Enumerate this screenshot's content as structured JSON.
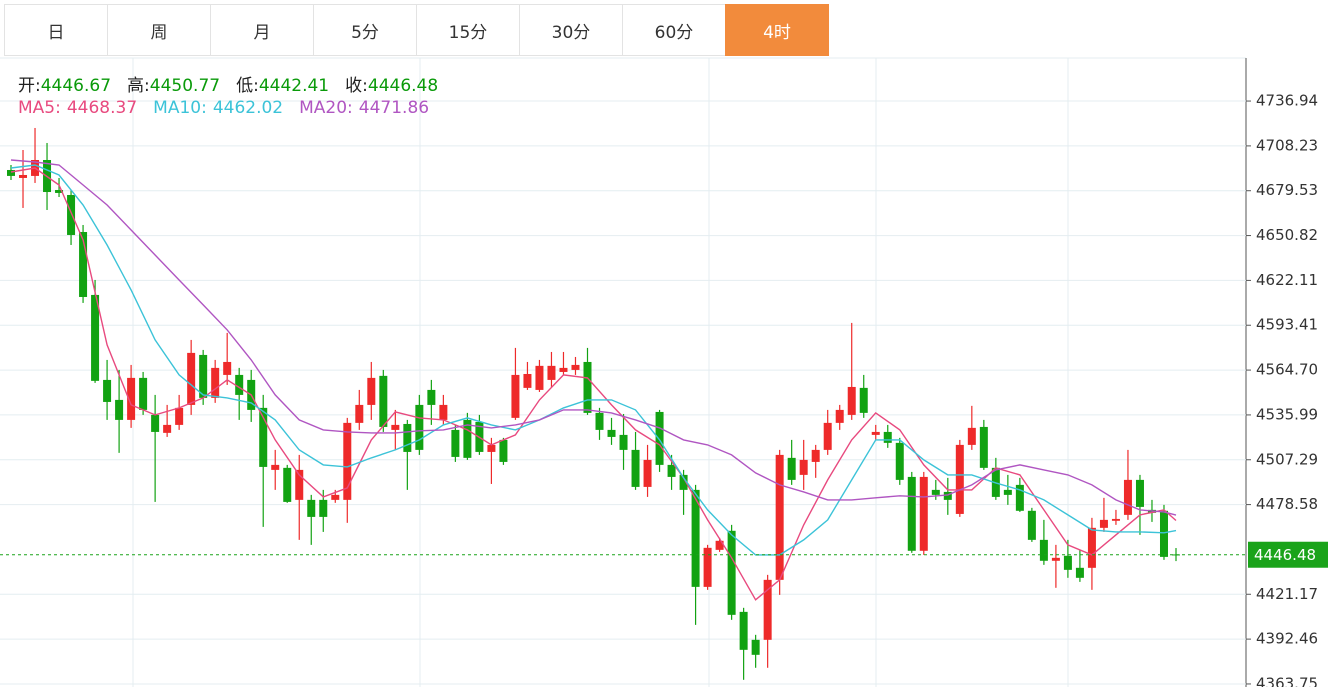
{
  "tabs": [
    "日",
    "周",
    "月",
    "5分",
    "15分",
    "30分",
    "60分",
    "4时"
  ],
  "active_tab": 7,
  "chart_data": {
    "type": "candlestick",
    "header": [
      {
        "label": "开:",
        "value": 4446.67
      },
      {
        "label": "高:",
        "value": 4450.77
      },
      {
        "label": "低:",
        "value": 4442.41
      },
      {
        "label": "收:",
        "value": 4446.48
      }
    ],
    "up_color": "#ee2a2a",
    "down_color": "#12a212",
    "ylim": [
      4361.8,
      4764.5
    ],
    "yticks": [
      4363.75,
      4392.46,
      4421.17,
      4478.58,
      4507.29,
      4535.99,
      {
        "value": 4564.7,
        "label": "4564.70"
      },
      4593.41,
      4622.11,
      4650.82,
      4679.53,
      4708.23,
      4736.94
    ],
    "grid": true,
    "last_price": 4446.48,
    "last_price_color": "#1aa31a",
    "open": [
      4692.8,
      4687.7,
      4689.0,
      4699.2,
      4680.0,
      4676.8,
      4653.1,
      4612.8,
      4558.4,
      4545.6,
      4532.8,
      4559.7,
      4536.0,
      4524.5,
      4529.6,
      4542.4,
      4574.4,
      4546.9,
      4561.6,
      4561.6,
      4558.4,
      4540.5,
      4500.8,
      4502.1,
      4481.6,
      4481.6,
      4481.6,
      4481.6,
      4481.6,
      4530.9,
      4542.4,
      4561.0,
      4526.4,
      4530.2,
      4542.4,
      4552.0,
      4532.8,
      4526.4,
      4532.8,
      4531.5,
      4512.3,
      4520.0,
      4534.1,
      4553.3,
      4552.0,
      4558.4,
      4563.5,
      4564.8,
      4569.9,
      4537.3,
      4526.4,
      4523.2,
      4513.6,
      4489.9,
      4537.9,
      4504.0,
      4497.6,
      4488.0,
      4425.9,
      4449.6,
      4461.8,
      4409.9,
      4392.0,
      4392.0,
      4430.4,
      4508.5,
      4497.6,
      4505.9,
      4513.6,
      4530.9,
      4536.0,
      4553.3,
      4523.2,
      4525.1,
      4518.1,
      4496.3,
      4449.0,
      4488.0,
      4486.7,
      4472.6,
      4516.8,
      4528.3,
      4502.1,
      4488.0,
      4491.2,
      4474.6,
      4456.0,
      4442.6,
      4445.8,
      4438.1,
      4438.1,
      4463.7,
      4468.2,
      4472.0,
      4494.4,
      4475.2,
      4474.6,
      4446.67
    ],
    "close": [
      4689.0,
      4689.6,
      4699.2,
      4678.7,
      4678.1,
      4651.2,
      4611.5,
      4557.8,
      4544.3,
      4532.8,
      4559.7,
      4539.2,
      4525.1,
      4529.6,
      4540.5,
      4575.7,
      4546.9,
      4566.1,
      4569.9,
      4548.8,
      4539.2,
      4502.7,
      4504.0,
      4480.3,
      4500.8,
      4470.7,
      4470.7,
      4484.8,
      4530.9,
      4542.4,
      4559.7,
      4528.3,
      4529.6,
      4512.3,
      4513.6,
      4542.4,
      4542.4,
      4509.1,
      4508.5,
      4512.3,
      4516.8,
      4505.9,
      4561.6,
      4562.2,
      4567.4,
      4567.4,
      4566.1,
      4568.0,
      4537.3,
      4526.4,
      4521.9,
      4513.6,
      4489.9,
      4507.2,
      4504.0,
      4496.3,
      4488.0,
      4425.9,
      4450.9,
      4455.4,
      4408.0,
      4385.6,
      4382.4,
      4430.4,
      4510.4,
      4494.4,
      4507.2,
      4513.6,
      4530.9,
      4539.2,
      4553.9,
      4537.3,
      4525.1,
      4518.1,
      4494.4,
      4449.0,
      4496.3,
      4484.8,
      4481.6,
      4516.8,
      4527.7,
      4502.1,
      4483.5,
      4484.8,
      4474.6,
      4456.0,
      4442.6,
      4444.5,
      4436.8,
      4431.7,
      4463.7,
      4468.8,
      4469.4,
      4494.4,
      4477.1,
      4473.3,
      4445.1,
      4446.48
    ],
    "high": [
      4696.0,
      4705.6,
      4719.7,
      4710.1,
      4687.7,
      4680.0,
      4657.6,
      4622.4,
      4571.2,
      4564.8,
      4568.0,
      4563.5,
      4548.8,
      4542.4,
      4548.8,
      4584.0,
      4577.6,
      4571.2,
      4588.5,
      4566.1,
      4564.8,
      4548.8,
      4513.6,
      4504.0,
      4510.4,
      4484.8,
      4488.0,
      4488.0,
      4534.1,
      4552.0,
      4569.9,
      4564.8,
      4539.2,
      4532.8,
      4548.8,
      4558.4,
      4548.8,
      4529.6,
      4537.3,
      4536.0,
      4521.3,
      4521.3,
      4578.9,
      4569.9,
      4571.2,
      4576.3,
      4576.3,
      4573.1,
      4578.9,
      4540.5,
      4534.1,
      4536.6,
      4525.1,
      4516.8,
      4539.2,
      4510.4,
      4500.8,
      4491.2,
      4452.8,
      4457.3,
      4465.6,
      4412.5,
      4395.2,
      4433.6,
      4513.6,
      4520.0,
      4520.0,
      4516.8,
      4539.2,
      4542.4,
      4594.9,
      4561.6,
      4529.6,
      4529.6,
      4521.3,
      4499.5,
      4499.5,
      4494.4,
      4495.7,
      4520.0,
      4541.8,
      4532.8,
      4508.5,
      4497.6,
      4495.7,
      4476.5,
      4468.8,
      4452.8,
      4456.0,
      4449.6,
      4470.1,
      4482.9,
      4475.2,
      4513.6,
      4497.6,
      4481.6,
      4478.4,
      4450.77
    ],
    "low": [
      4686.4,
      4668.5,
      4684.5,
      4667.2,
      4675.5,
      4644.8,
      4607.7,
      4556.5,
      4532.8,
      4511.7,
      4527.7,
      4536.0,
      4480.3,
      4521.9,
      4526.4,
      4536.0,
      4542.4,
      4543.7,
      4555.2,
      4532.8,
      4531.5,
      4464.3,
      4488.0,
      4479.7,
      4456.0,
      4452.8,
      4461.1,
      4479.7,
      4466.9,
      4526.4,
      4532.8,
      4525.1,
      4513.6,
      4488.0,
      4510.4,
      4529.6,
      4529.6,
      4505.9,
      4507.2,
      4510.4,
      4491.8,
      4504.0,
      4532.8,
      4552.0,
      4550.7,
      4553.9,
      4561.6,
      4561.6,
      4536.0,
      4520.0,
      4516.8,
      4500.8,
      4488.0,
      4483.5,
      4499.5,
      4488.0,
      4472.0,
      4401.6,
      4424.0,
      4448.3,
      4404.8,
      4366.4,
      4374.1,
      4374.1,
      4420.8,
      4491.2,
      4488.0,
      4495.7,
      4510.4,
      4526.4,
      4532.8,
      4534.1,
      4520.0,
      4514.9,
      4491.2,
      4447.7,
      4446.4,
      4481.6,
      4472.0,
      4470.7,
      4513.6,
      4500.8,
      4481.6,
      4478.4,
      4473.9,
      4454.7,
      4440.0,
      4425.3,
      4431.7,
      4429.1,
      4424.0,
      4461.1,
      4465.6,
      4468.8,
      4459.2,
      4467.5,
      4443.2,
      4442.41
    ],
    "ma": [
      {
        "name": "MA5:",
        "color": "#e84a7f",
        "current": 4468.37,
        "x": [
          0,
          2,
          4,
          6,
          8,
          10,
          12,
          14,
          16,
          18,
          20,
          22,
          24,
          26,
          28,
          30,
          32,
          34,
          36,
          38,
          40,
          42,
          44,
          46,
          48,
          50,
          52,
          54,
          56,
          58,
          60,
          62,
          64,
          66,
          68,
          70,
          72,
          74,
          76,
          78,
          80,
          82,
          84,
          86,
          88,
          90,
          92,
          94,
          96,
          97
        ],
        "values": [
          4691.5,
          4694.1,
          4683.2,
          4648.0,
          4580.8,
          4542.4,
          4536.0,
          4540.5,
          4546.9,
          4558.4,
          4548.8,
          4520.0,
          4497.6,
          4483.5,
          4489.3,
          4520.0,
          4537.9,
          4534.1,
          4532.8,
          4526.4,
          4516.8,
          4523.2,
          4545.6,
          4561.6,
          4559.7,
          4542.4,
          4526.4,
          4516.8,
          4495.7,
          4468.8,
          4444.5,
          4417.6,
          4430.4,
          4465.6,
          4494.4,
          4520.0,
          4537.3,
          4526.4,
          4504.0,
          4488.0,
          4488.0,
          4502.1,
          4497.6,
          4475.2,
          4452.8,
          4446.4,
          4459.2,
          4472.0,
          4475.2,
          4468.37
        ]
      },
      {
        "name": "MA10:",
        "color": "#3cc3d8",
        "current": 4462.02,
        "x": [
          0,
          2,
          4,
          6,
          8,
          10,
          12,
          14,
          16,
          18,
          20,
          22,
          24,
          26,
          28,
          30,
          32,
          34,
          36,
          38,
          40,
          42,
          44,
          46,
          48,
          50,
          52,
          54,
          56,
          58,
          60,
          62,
          64,
          66,
          68,
          70,
          72,
          74,
          76,
          78,
          80,
          82,
          84,
          86,
          88,
          90,
          92,
          94,
          96,
          97
        ],
        "values": [
          4694.1,
          4696.0,
          4689.6,
          4670.4,
          4644.8,
          4616.0,
          4584.0,
          4561.6,
          4548.8,
          4546.9,
          4543.7,
          4532.8,
          4513.6,
          4504.0,
          4502.7,
          4508.5,
          4513.6,
          4520.0,
          4529.6,
          4534.1,
          4529.6,
          4526.4,
          4532.8,
          4540.5,
          4545.6,
          4545.6,
          4539.2,
          4520.0,
          4495.7,
          4475.2,
          4459.2,
          4446.4,
          4446.4,
          4456.0,
          4468.8,
          4494.4,
          4520.0,
          4520.0,
          4507.2,
          4497.6,
          4497.6,
          4492.5,
          4488.0,
          4481.6,
          4472.0,
          4462.4,
          4461.1,
          4461.1,
          4460.5,
          4462.02
        ]
      },
      {
        "name": "MA20:",
        "color": "#b056c2",
        "current": 4471.86,
        "x": [
          0,
          2,
          4,
          6,
          8,
          10,
          12,
          14,
          16,
          18,
          20,
          22,
          24,
          26,
          28,
          30,
          32,
          34,
          36,
          38,
          40,
          42,
          44,
          46,
          48,
          50,
          52,
          54,
          56,
          58,
          60,
          62,
          64,
          66,
          68,
          70,
          72,
          74,
          76,
          78,
          80,
          82,
          84,
          86,
          88,
          90,
          92,
          94,
          96,
          97
        ],
        "values": [
          4699.2,
          4697.9,
          4696.0,
          4683.2,
          4670.4,
          4654.4,
          4638.4,
          4622.4,
          4606.4,
          4590.4,
          4571.2,
          4548.8,
          4532.8,
          4526.4,
          4525.1,
          4524.5,
          4524.5,
          4525.8,
          4526.4,
          4529.6,
          4527.7,
          4529.6,
          4532.8,
          4539.2,
          4539.2,
          4537.3,
          4532.8,
          4527.7,
          4520.0,
          4516.8,
          4510.4,
          4498.9,
          4491.2,
          4486.7,
          4481.6,
          4481.6,
          4482.9,
          4484.2,
          4483.5,
          4484.8,
          4491.2,
          4500.8,
          4504.0,
          4500.8,
          4497.6,
          4491.2,
          4481.6,
          4475.2,
          4473.9,
          4471.86
        ]
      }
    ]
  }
}
